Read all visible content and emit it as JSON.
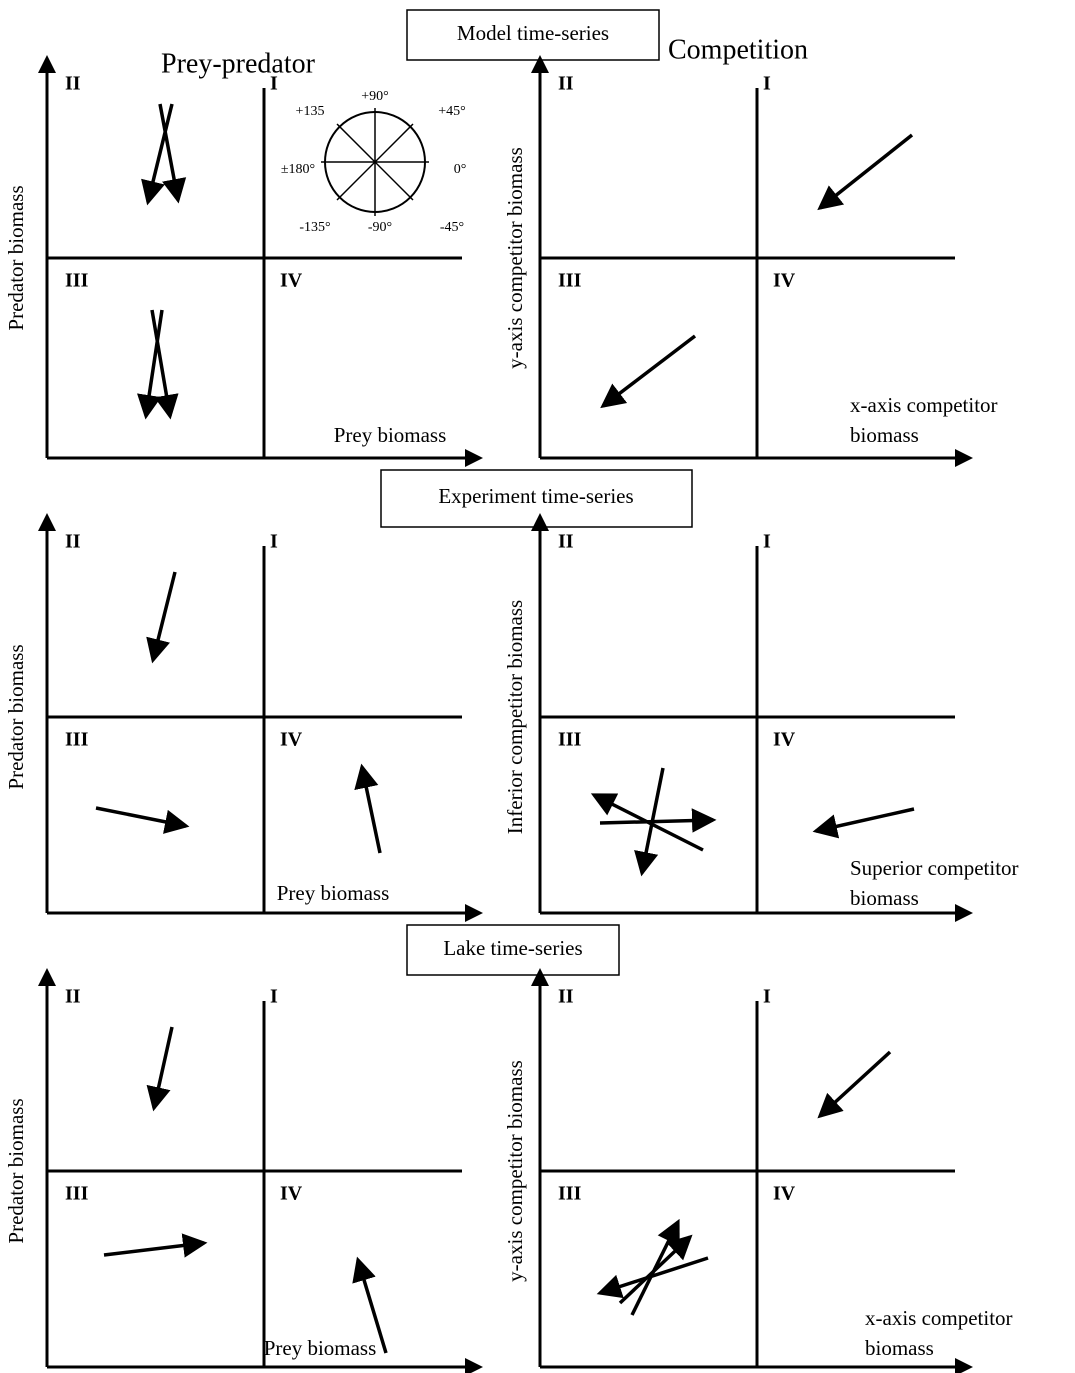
{
  "sections": [
    {
      "title": "Model time-series"
    },
    {
      "title": "Experiment time-series"
    },
    {
      "title": "Lake time-series"
    }
  ],
  "column_titles": [
    "Prey-predator",
    "Competition"
  ],
  "compass": {
    "labels": [
      "+90°",
      "+45°",
      "0°",
      "-45°",
      "-90°",
      "-135°",
      "±180°",
      "+135"
    ]
  },
  "panels": [
    {
      "ylabel": "Predator biomass",
      "xlabel": [
        "Prey biomass"
      ],
      "quadrants": [
        "I",
        "II",
        "III",
        "IV"
      ]
    },
    {
      "ylabel": "y-axis competitor biomass",
      "xlabel": [
        "x-axis competitor",
        "biomass"
      ],
      "quadrants": [
        "I",
        "II",
        "III",
        "IV"
      ]
    },
    {
      "ylabel": "Predator biomass",
      "xlabel": [
        "Prey biomass"
      ],
      "quadrants": [
        "I",
        "II",
        "III",
        "IV"
      ]
    },
    {
      "ylabel": "Inferior competitor biomass",
      "xlabel": [
        "Superior competitor",
        "biomass"
      ],
      "quadrants": [
        "I",
        "II",
        "III",
        "IV"
      ]
    },
    {
      "ylabel": "Predator biomass",
      "xlabel": [
        "Prey biomass"
      ],
      "quadrants": [
        "I",
        "II",
        "III",
        "IV"
      ]
    },
    {
      "ylabel": "y-axis competitor biomass",
      "xlabel": [
        "x-axis competitor",
        "biomass"
      ],
      "quadrants": [
        "I",
        "II",
        "III",
        "IV"
      ]
    }
  ]
}
